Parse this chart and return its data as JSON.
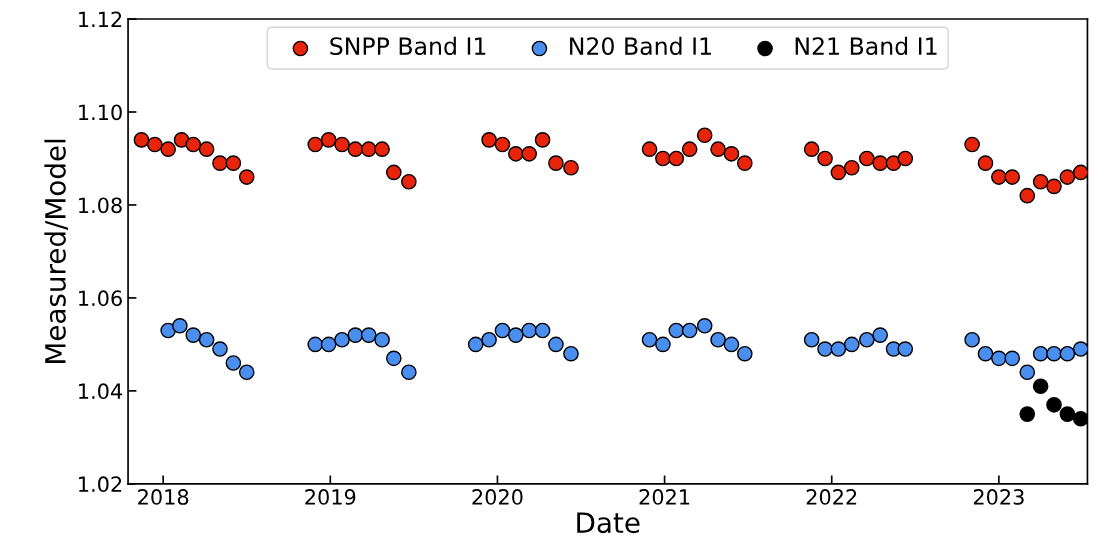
{
  "chart_data": {
    "type": "scatter",
    "xlabel": "Date",
    "ylabel": "Measured/Model",
    "xlim": [
      2017.79,
      2023.53
    ],
    "ylim": [
      1.02,
      1.12
    ],
    "xticks": [
      2018,
      2019,
      2020,
      2021,
      2022,
      2023
    ],
    "yticks": [
      {
        "value": 1.02,
        "label": "1.02"
      },
      {
        "value": 1.04,
        "label": "1.04"
      },
      {
        "value": 1.06,
        "label": "1.06"
      },
      {
        "value": 1.08,
        "label": "1.08"
      },
      {
        "value": 1.1,
        "label": "1.10"
      },
      {
        "value": 1.12,
        "label": "1.12"
      }
    ],
    "grid": false,
    "legend": "top",
    "marker": "circle",
    "series": [
      {
        "name": "SNPP Band I1",
        "color": "#e8250a",
        "x": [
          2017.87,
          2017.95,
          2018.03,
          2018.11,
          2018.18,
          2018.26,
          2018.34,
          2018.42,
          2018.5,
          2018.91,
          2018.99,
          2019.07,
          2019.15,
          2019.23,
          2019.31,
          2019.38,
          2019.47,
          2019.95,
          2020.03,
          2020.11,
          2020.19,
          2020.27,
          2020.35,
          2020.44,
          2020.91,
          2020.99,
          2021.07,
          2021.15,
          2021.24,
          2021.32,
          2021.4,
          2021.48,
          2021.88,
          2021.96,
          2022.04,
          2022.12,
          2022.21,
          2022.29,
          2022.37,
          2022.44,
          2022.84,
          2022.92,
          2023.0,
          2023.08,
          2023.17,
          2023.25,
          2023.33,
          2023.41,
          2023.49
        ],
        "values": [
          1.094,
          1.093,
          1.092,
          1.094,
          1.093,
          1.092,
          1.089,
          1.089,
          1.086,
          1.093,
          1.094,
          1.093,
          1.092,
          1.092,
          1.092,
          1.087,
          1.085,
          1.094,
          1.093,
          1.091,
          1.091,
          1.094,
          1.089,
          1.088,
          1.092,
          1.09,
          1.09,
          1.092,
          1.095,
          1.092,
          1.091,
          1.089,
          1.092,
          1.09,
          1.087,
          1.088,
          1.09,
          1.089,
          1.089,
          1.09,
          1.093,
          1.089,
          1.086,
          1.086,
          1.082,
          1.085,
          1.084,
          1.086,
          1.087
        ]
      },
      {
        "name": "N20 Band I1",
        "color": "#4a8ff0",
        "x": [
          2018.03,
          2018.1,
          2018.18,
          2018.26,
          2018.34,
          2018.42,
          2018.5,
          2018.91,
          2018.99,
          2019.07,
          2019.15,
          2019.23,
          2019.31,
          2019.38,
          2019.47,
          2019.87,
          2019.95,
          2020.03,
          2020.11,
          2020.19,
          2020.27,
          2020.35,
          2020.44,
          2020.91,
          2020.99,
          2021.07,
          2021.15,
          2021.24,
          2021.32,
          2021.4,
          2021.48,
          2021.88,
          2021.96,
          2022.04,
          2022.12,
          2022.21,
          2022.29,
          2022.37,
          2022.44,
          2022.84,
          2022.92,
          2023.0,
          2023.08,
          2023.17,
          2023.25,
          2023.33,
          2023.41,
          2023.49
        ],
        "values": [
          1.053,
          1.054,
          1.052,
          1.051,
          1.049,
          1.046,
          1.044,
          1.05,
          1.05,
          1.051,
          1.052,
          1.052,
          1.051,
          1.047,
          1.044,
          1.05,
          1.051,
          1.053,
          1.052,
          1.053,
          1.053,
          1.05,
          1.048,
          1.051,
          1.05,
          1.053,
          1.053,
          1.054,
          1.051,
          1.05,
          1.048,
          1.051,
          1.049,
          1.049,
          1.05,
          1.051,
          1.052,
          1.049,
          1.049,
          1.051,
          1.048,
          1.047,
          1.047,
          1.044,
          1.048,
          1.048,
          1.048,
          1.049
        ]
      },
      {
        "name": "N21 Band I1",
        "color": "#000000",
        "x": [
          2023.17,
          2023.25,
          2023.33,
          2023.41,
          2023.49
        ],
        "values": [
          1.035,
          1.041,
          1.037,
          1.035,
          1.034
        ]
      }
    ]
  }
}
